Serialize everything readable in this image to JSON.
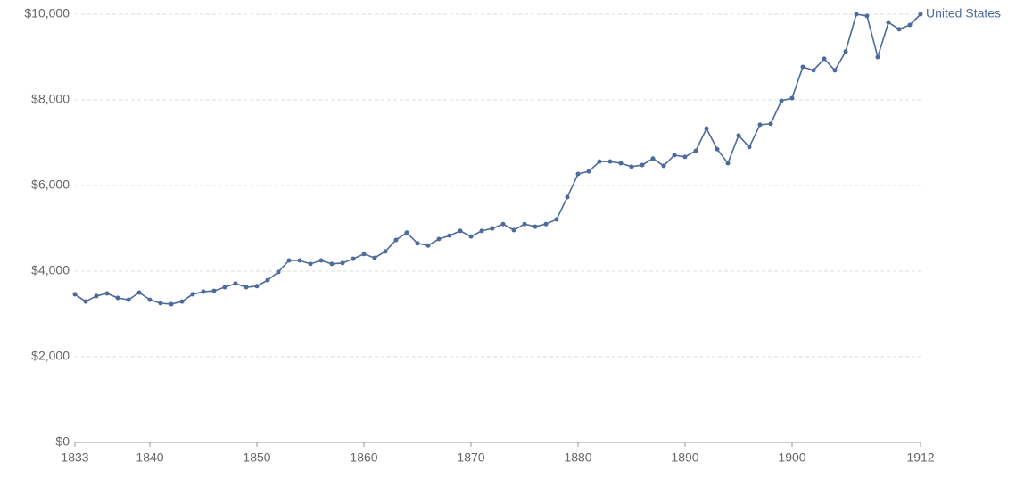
{
  "chart_data": {
    "type": "line",
    "x": [
      1833,
      1834,
      1835,
      1836,
      1837,
      1838,
      1839,
      1840,
      1841,
      1842,
      1843,
      1844,
      1845,
      1846,
      1847,
      1848,
      1849,
      1850,
      1851,
      1852,
      1853,
      1854,
      1855,
      1856,
      1857,
      1858,
      1859,
      1860,
      1861,
      1862,
      1863,
      1864,
      1865,
      1866,
      1867,
      1868,
      1869,
      1870,
      1871,
      1872,
      1873,
      1874,
      1875,
      1876,
      1877,
      1878,
      1879,
      1880,
      1881,
      1882,
      1883,
      1884,
      1885,
      1886,
      1887,
      1888,
      1889,
      1890,
      1891,
      1892,
      1893,
      1894,
      1895,
      1896,
      1897,
      1898,
      1899,
      1900,
      1901,
      1902,
      1903,
      1904,
      1905,
      1906,
      1907,
      1908,
      1909,
      1910,
      1911,
      1912
    ],
    "series": [
      {
        "name": "United States",
        "color": "#4c6a9c",
        "values": [
          3460,
          3290,
          3420,
          3480,
          3375,
          3330,
          3500,
          3330,
          3250,
          3230,
          3290,
          3460,
          3520,
          3540,
          3625,
          3710,
          3625,
          3650,
          3790,
          3980,
          4250,
          4250,
          4170,
          4250,
          4170,
          4190,
          4290,
          4400,
          4310,
          4460,
          4730,
          4900,
          4650,
          4600,
          4750,
          4830,
          4940,
          4810,
          4940,
          5000,
          5100,
          4960,
          5100,
          5040,
          5100,
          5210,
          5730,
          6270,
          6330,
          6560,
          6560,
          6520,
          6440,
          6480,
          6630,
          6460,
          6710,
          6670,
          6810,
          7330,
          6850,
          6520,
          7170,
          6900,
          7420,
          7440,
          7980,
          8040,
          8770,
          8690,
          8960,
          8690,
          9130,
          10000,
          9960,
          9000,
          9810,
          9650,
          9750,
          10000
        ]
      }
    ],
    "xlim": [
      1833,
      1912
    ],
    "xticks": [
      1833,
      1840,
      1850,
      1860,
      1870,
      1880,
      1890,
      1900,
      1912
    ],
    "ylim": [
      0,
      10000
    ],
    "yticks": [
      {
        "value": 0,
        "label": "$0"
      },
      {
        "value": 2000,
        "label": "$2,000"
      },
      {
        "value": 4000,
        "label": "$4,000"
      },
      {
        "value": 6000,
        "label": "$6,000"
      },
      {
        "value": 8000,
        "label": "$8,000"
      },
      {
        "value": 10000,
        "label": "$10,000"
      }
    ],
    "grid": true
  }
}
